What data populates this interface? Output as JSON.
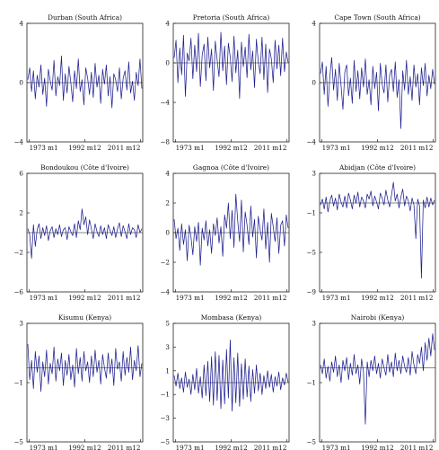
{
  "chart_data": [
    {
      "type": "line",
      "title": "Durban (South Africa)",
      "yticks": [
        "4",
        "0",
        "−4"
      ],
      "ylim": [
        -4,
        4
      ],
      "xticks": [
        "1973 m1",
        "1992 m12",
        "2011 m12"
      ],
      "series": [
        {
          "values": [
            0.2,
            1.0,
            -0.6,
            0.8,
            -1.1,
            0.5,
            -0.3,
            1.2,
            -0.8,
            0.3,
            -1.6,
            0.9,
            0.1,
            -0.5,
            1.5,
            -0.9,
            0.4,
            -0.2,
            1.8,
            -1.2,
            0.6,
            -0.7,
            1.1,
            0.0,
            -1.3,
            0.8,
            -0.4,
            1.6,
            -0.6,
            0.2,
            -1.5,
            1.0,
            0.3,
            -0.8,
            0.7,
            -1.0,
            1.3,
            -0.3,
            0.5,
            -1.4,
            0.9,
            -0.1,
            1.2,
            -0.9,
            0.4,
            -1.7,
            0.6,
            0.2,
            -0.6,
            1.0,
            -1.1,
            0.3,
            0.8,
            -0.5,
            1.4,
            -0.7,
            0.1,
            -1.2,
            0.7,
            -0.2,
            1.6,
            -0.4
          ]
        }
      ]
    },
    {
      "type": "line",
      "title": "Pretoria (South Africa)",
      "yticks": [
        "4",
        "0",
        "−4",
        "−8"
      ],
      "ylim": [
        -8,
        4
      ],
      "xticks": [
        "1973 m1",
        "1992 m12",
        "2011 m12"
      ],
      "series": [
        {
          "values": [
            0.5,
            2.3,
            -2.0,
            1.5,
            -1.2,
            2.8,
            -3.4,
            1.0,
            0.2,
            2.5,
            -1.6,
            1.8,
            -0.9,
            3.0,
            -2.4,
            0.8,
            1.9,
            -1.8,
            2.6,
            -0.5,
            1.4,
            -2.8,
            2.2,
            0.3,
            -1.4,
            3.1,
            -0.8,
            1.7,
            -2.2,
            2.0,
            0.6,
            -1.9,
            2.7,
            -1.0,
            1.3,
            -3.6,
            2.1,
            -0.4,
            1.6,
            -1.5,
            2.9,
            -0.7,
            1.2,
            -2.5,
            2.4,
            0.1,
            -1.1,
            2.6,
            -1.7,
            1.9,
            -3.0,
            1.4,
            0.4,
            -2.0,
            2.3,
            -0.6,
            1.8,
            -1.3,
            2.5,
            -0.9,
            1.1,
            0.0
          ]
        }
      ]
    },
    {
      "type": "line",
      "title": "Cape Town (South Africa)",
      "yticks": [
        "4",
        "0",
        "−4"
      ],
      "ylim": [
        -4,
        4
      ],
      "xticks": [
        "1973 m1",
        "1992 m12",
        "2011 m12"
      ],
      "series": [
        {
          "values": [
            0.6,
            1.4,
            -0.8,
            1.1,
            -1.6,
            0.4,
            1.7,
            -0.5,
            0.9,
            -1.2,
            1.3,
            -0.2,
            -1.8,
            0.7,
            1.2,
            -0.9,
            0.3,
            -1.4,
            1.5,
            -0.6,
            0.8,
            -1.1,
            1.0,
            -0.3,
            1.6,
            -0.8,
            0.2,
            -1.5,
            1.1,
            -0.4,
            0.7,
            -1.9,
            1.3,
            -0.1,
            -0.7,
            1.2,
            -1.3,
            0.5,
            0.9,
            -0.6,
            1.4,
            -1.0,
            0.2,
            -3.1,
            0.8,
            -0.5,
            1.5,
            -0.8,
            0.4,
            -1.2,
            1.2,
            -0.3,
            0.6,
            -1.5,
            1.0,
            -0.2,
            1.3,
            -0.9,
            0.5,
            -0.4,
            0.9,
            -0.1
          ]
        }
      ]
    },
    {
      "type": "line",
      "title": "Bondoukou (Côte d'Ivoire)",
      "yticks": [
        "6",
        "2",
        "−2",
        "−6"
      ],
      "ylim": [
        -6,
        6
      ],
      "xticks": [
        "1973 m1",
        "1992 m12",
        "2011 m12"
      ],
      "series": [
        {
          "values": [
            0.4,
            -0.2,
            -2.6,
            0.8,
            -1.4,
            0.3,
            0.9,
            -0.6,
            0.5,
            -0.3,
            0.7,
            -0.8,
            0.2,
            0.6,
            -0.5,
            0.4,
            -0.2,
            0.8,
            -0.4,
            0.3,
            0.5,
            -0.7,
            0.6,
            0.1,
            -0.3,
            0.9,
            -0.5,
            1.2,
            0.3,
            2.4,
            0.8,
            1.6,
            -0.2,
            1.3,
            0.4,
            -0.6,
            0.9,
            0.1,
            -0.4,
            0.7,
            -0.2,
            0.5,
            -0.6,
            0.8,
            0.2,
            -0.3,
            0.6,
            -0.5,
            0.4,
            1.0,
            -0.4,
            0.7,
            0.1,
            -0.6,
            0.9,
            -0.2,
            0.5,
            0.3,
            -0.5,
            0.8,
            0.0,
            0.4
          ]
        }
      ]
    },
    {
      "type": "line",
      "title": "Gagnoa (Côte d'Ivoire)",
      "yticks": [
        "4",
        "2",
        "0",
        "−2",
        "−4"
      ],
      "ylim": [
        -4,
        4
      ],
      "xticks": [
        "1973 m1",
        "1992 m12",
        "2011 m12"
      ],
      "series": [
        {
          "values": [
            0.9,
            -0.4,
            0.3,
            -1.2,
            0.6,
            -0.8,
            0.2,
            -1.9,
            0.5,
            -0.3,
            -1.5,
            0.4,
            -0.6,
            0.7,
            -2.2,
            0.3,
            -0.5,
            0.8,
            -0.9,
            0.2,
            -1.4,
            0.6,
            -0.2,
            1.0,
            -0.7,
            0.4,
            -1.6,
            1.2,
            0.3,
            2.0,
            -0.4,
            1.5,
            -1.0,
            2.6,
            0.8,
            -0.6,
            2.2,
            -1.3,
            1.4,
            0.5,
            -0.8,
            1.8,
            -0.3,
            0.9,
            -1.7,
            1.1,
            0.2,
            -0.5,
            1.6,
            -1.1,
            0.7,
            -2.0,
            1.3,
            0.4,
            -0.6,
            1.0,
            -1.4,
            0.5,
            0.8,
            -0.9,
            1.2,
            0.3
          ]
        }
      ]
    },
    {
      "type": "line",
      "title": "Abidjan (Côte d'Ivoire)",
      "yticks": [
        "3",
        "−1",
        "−5",
        "−9"
      ],
      "ylim": [
        -9,
        3
      ],
      "xticks": [
        "1973 m1",
        "1992 m12",
        "2011 m12"
      ],
      "series": [
        {
          "values": [
            -0.2,
            0.4,
            -0.6,
            0.6,
            -0.9,
            0.2,
            0.8,
            -0.3,
            0.5,
            -0.7,
            0.9,
            0.1,
            -0.4,
            0.7,
            -0.5,
            1.0,
            0.3,
            -0.6,
            0.8,
            0.0,
            1.1,
            -0.4,
            0.6,
            0.2,
            -0.5,
            0.9,
            0.4,
            1.2,
            -0.3,
            0.7,
            0.1,
            -0.6,
            1.0,
            0.5,
            -0.2,
            1.3,
            0.3,
            -0.4,
            0.8,
            2.1,
            0.2,
            0.9,
            -0.5,
            0.6,
            1.4,
            -0.3,
            0.7,
            0.2,
            -0.8,
            0.5,
            -0.2,
            -3.6,
            0.4,
            -0.3,
            -7.6,
            0.3,
            -0.5,
            0.6,
            -0.4,
            0.5,
            -0.2,
            0.3
          ]
        }
      ]
    },
    {
      "type": "line",
      "title": "Kisumu (Kenya)",
      "yticks": [
        "3",
        "−1",
        "−5"
      ],
      "ylim": [
        -5,
        3
      ],
      "xticks": [
        "1973 m1",
        "1992 m12",
        "2011 m12"
      ],
      "series": [
        {
          "values": [
            1.6,
            -0.8,
            0.5,
            -1.4,
            1.1,
            -0.3,
            0.8,
            -1.6,
            0.4,
            -0.6,
            1.2,
            -1.1,
            0.3,
            -0.4,
            1.4,
            -0.9,
            0.6,
            -0.2,
            1.0,
            -1.2,
            0.5,
            -0.5,
            0.9,
            -0.8,
            0.2,
            -1.3,
            1.3,
            -0.4,
            0.7,
            -0.9,
            1.1,
            -0.2,
            0.4,
            -1.0,
            0.8,
            -0.6,
            1.2,
            -0.3,
            0.5,
            -1.1,
            0.9,
            0.0,
            -0.7,
            1.0,
            -0.4,
            0.6,
            -1.2,
            1.3,
            -0.1,
            0.4,
            -0.9,
            1.1,
            -0.5,
            0.7,
            -0.3,
            1.4,
            -0.8,
            0.5,
            -0.2,
            1.5,
            -0.6,
            0.3
          ]
        }
      ]
    },
    {
      "type": "line",
      "title": "Mombasa (Kenya)",
      "yticks": [
        "5",
        "3",
        "1",
        "−1",
        "−3",
        "−5"
      ],
      "ylim": [
        -5,
        5
      ],
      "xticks": [
        "1973 m1",
        "1992 m12",
        "2011 m12"
      ],
      "series": [
        {
          "values": [
            0.6,
            -0.3,
            0.8,
            -0.5,
            0.4,
            -0.8,
            0.9,
            -0.4,
            0.3,
            -1.0,
            0.7,
            -0.6,
            1.2,
            -0.9,
            0.5,
            -1.3,
            1.5,
            -1.1,
            1.8,
            -1.6,
            2.2,
            -1.9,
            2.6,
            -1.5,
            2.3,
            -2.2,
            1.9,
            -1.8,
            2.8,
            -1.3,
            3.6,
            -2.4,
            2.1,
            -1.7,
            2.5,
            -2.0,
            1.6,
            -1.4,
            2.0,
            -1.2,
            1.4,
            -1.6,
            1.1,
            -0.9,
            1.5,
            -0.7,
            0.8,
            -1.0,
            0.6,
            -0.5,
            1.0,
            -0.4,
            0.7,
            -0.8,
            0.5,
            -0.3,
            0.9,
            -0.6,
            0.4,
            -0.2,
            0.8,
            0.0
          ]
        }
      ]
    },
    {
      "type": "line",
      "title": "Nairobi (Kenya)",
      "yticks": [
        "3",
        "−1",
        "−5"
      ],
      "ylim": [
        -5,
        3
      ],
      "xticks": [
        "1973 m1",
        "1992 m12",
        "2011 m12"
      ],
      "series": [
        {
          "values": [
            0.2,
            -0.4,
            0.6,
            -0.7,
            0.1,
            -0.9,
            0.4,
            -0.3,
            0.8,
            -0.6,
            0.2,
            -1.0,
            0.5,
            -0.2,
            0.7,
            -0.8,
            0.3,
            -0.5,
            0.9,
            -0.4,
            0.2,
            -1.1,
            0.6,
            -0.3,
            -3.8,
            0.4,
            -0.6,
            0.5,
            -0.2,
            0.8,
            -0.4,
            0.3,
            -0.7,
            0.6,
            0.0,
            -0.5,
            0.9,
            -0.3,
            0.4,
            -0.6,
            1.0,
            -0.2,
            0.5,
            -0.4,
            0.8,
            0.1,
            -0.3,
            0.7,
            -0.5,
            1.1,
            0.2,
            -0.4,
            0.9,
            0.3,
            1.4,
            -0.2,
            1.7,
            0.5,
            2.0,
            0.8,
            2.3,
            1.2
          ]
        }
      ]
    }
  ]
}
